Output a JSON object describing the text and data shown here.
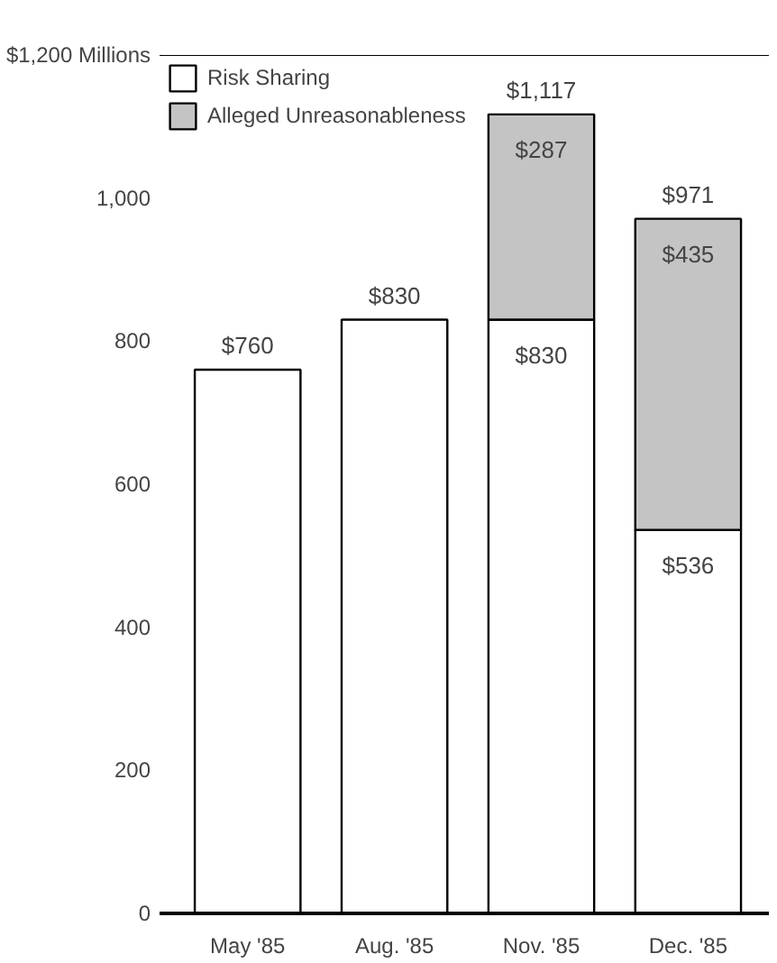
{
  "chart_data": {
    "type": "bar",
    "stacked": true,
    "categories": [
      "May '85",
      "Aug. '85",
      "Nov. '85",
      "Dec. '85"
    ],
    "series": [
      {
        "name": "Risk Sharing",
        "color": "#ffffff",
        "values": [
          760,
          830,
          830,
          536
        ],
        "value_labels": [
          null,
          null,
          "$830",
          "$536"
        ]
      },
      {
        "name": "Alleged Unreasonableness",
        "color": "#c4c4c4",
        "values": [
          null,
          null,
          287,
          435
        ],
        "value_labels": [
          null,
          null,
          "$287",
          "$435"
        ]
      }
    ],
    "totals": [
      "$760",
      "$830",
      "$1,117",
      "$971"
    ],
    "ylim": [
      0,
      1200
    ],
    "yticks": [
      0,
      200,
      400,
      600,
      800,
      {
        "value": 1000,
        "label": "1,000"
      },
      {
        "value": 1200,
        "label": "$1,200 Millions"
      }
    ],
    "grid": false,
    "legend": "top left"
  }
}
